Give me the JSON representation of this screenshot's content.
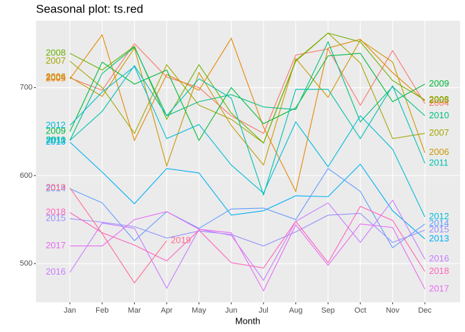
{
  "chart_data": {
    "type": "line",
    "title": "Seasonal plot: ts.red",
    "x_label": "Month",
    "categories": [
      "Jan",
      "Feb",
      "Mar",
      "Apr",
      "May",
      "Jun",
      "Jul",
      "Aug",
      "Sep",
      "Oct",
      "Nov",
      "Dec"
    ],
    "ylim": [
      456,
      776
    ],
    "yticks": [
      500,
      600,
      700
    ],
    "grid": true,
    "series": [
      {
        "name": "2004",
        "color": "#F8766D",
        "values": [
          711,
          697,
          750,
          712,
          700,
          668,
          648,
          737,
          744,
          680,
          742,
          682
        ]
      },
      {
        "name": "2005",
        "color": "#E58700",
        "values": [
          710,
          760,
          640,
          715,
          697,
          756,
          655,
          582,
          745,
          755,
          717,
          685
        ]
      },
      {
        "name": "2006",
        "color": "#C99800",
        "values": [
          712,
          690,
          745,
          611,
          717,
          657,
          612,
          733,
          689,
          754,
          729,
          626
        ]
      },
      {
        "name": "2007",
        "color": "#A3A500",
        "values": [
          730,
          700,
          648,
          726,
          680,
          664,
          637,
          731,
          762,
          728,
          642,
          648
        ]
      },
      {
        "name": "2008",
        "color": "#6BB100",
        "values": [
          739,
          720,
          747,
          664,
          726,
          671,
          637,
          730,
          762,
          752,
          708,
          686
        ]
      },
      {
        "name": "2009",
        "color": "#00BA38",
        "values": [
          650,
          729,
          704,
          720,
          640,
          700,
          659,
          677,
          736,
          739,
          684,
          704
        ]
      },
      {
        "name": "2010",
        "color": "#00BF7D",
        "values": [
          640,
          716,
          746,
          668,
          684,
          692,
          678,
          675,
          752,
          661,
          701,
          668
        ]
      },
      {
        "name": "2011",
        "color": "#00C0AF",
        "values": [
          640,
          673,
          725,
          668,
          710,
          688,
          578,
          698,
          698,
          642,
          702,
          614
        ]
      },
      {
        "name": "2012",
        "color": "#00BCD8",
        "values": [
          657,
          695,
          724,
          642,
          658,
          612,
          580,
          661,
          610,
          668,
          630,
          553
        ]
      },
      {
        "name": "2013",
        "color": "#00B0F6",
        "values": [
          638,
          604,
          568,
          608,
          603,
          555,
          560,
          577,
          576,
          613,
          560,
          528
        ]
      },
      {
        "name": "2014",
        "color": "#619CFF",
        "values": [
          585,
          569,
          526,
          559,
          540,
          562,
          563,
          550,
          608,
          582,
          518,
          545
        ]
      },
      {
        "name": "2015",
        "color": "#9590FF",
        "values": [
          551,
          547,
          542,
          529,
          537,
          533,
          520,
          536,
          555,
          557,
          524,
          538
        ]
      },
      {
        "name": "2016",
        "color": "#C77CFF",
        "values": [
          490,
          546,
          540,
          472,
          539,
          532,
          481,
          548,
          569,
          524,
          572,
          505
        ]
      },
      {
        "name": "2017",
        "color": "#E76BF3",
        "values": [
          520,
          520,
          550,
          559,
          539,
          535,
          469,
          544,
          498,
          545,
          541,
          471
        ]
      },
      {
        "name": "2018",
        "color": "#FF62BC",
        "values": [
          558,
          535,
          521,
          503,
          538,
          501,
          495,
          548,
          501,
          565,
          549,
          491
        ]
      },
      {
        "name": "2019",
        "color": "#FF6C91",
        "values": [
          586,
          534,
          478,
          526,
          null,
          null,
          null,
          null,
          null,
          null,
          null,
          null
        ]
      }
    ]
  }
}
